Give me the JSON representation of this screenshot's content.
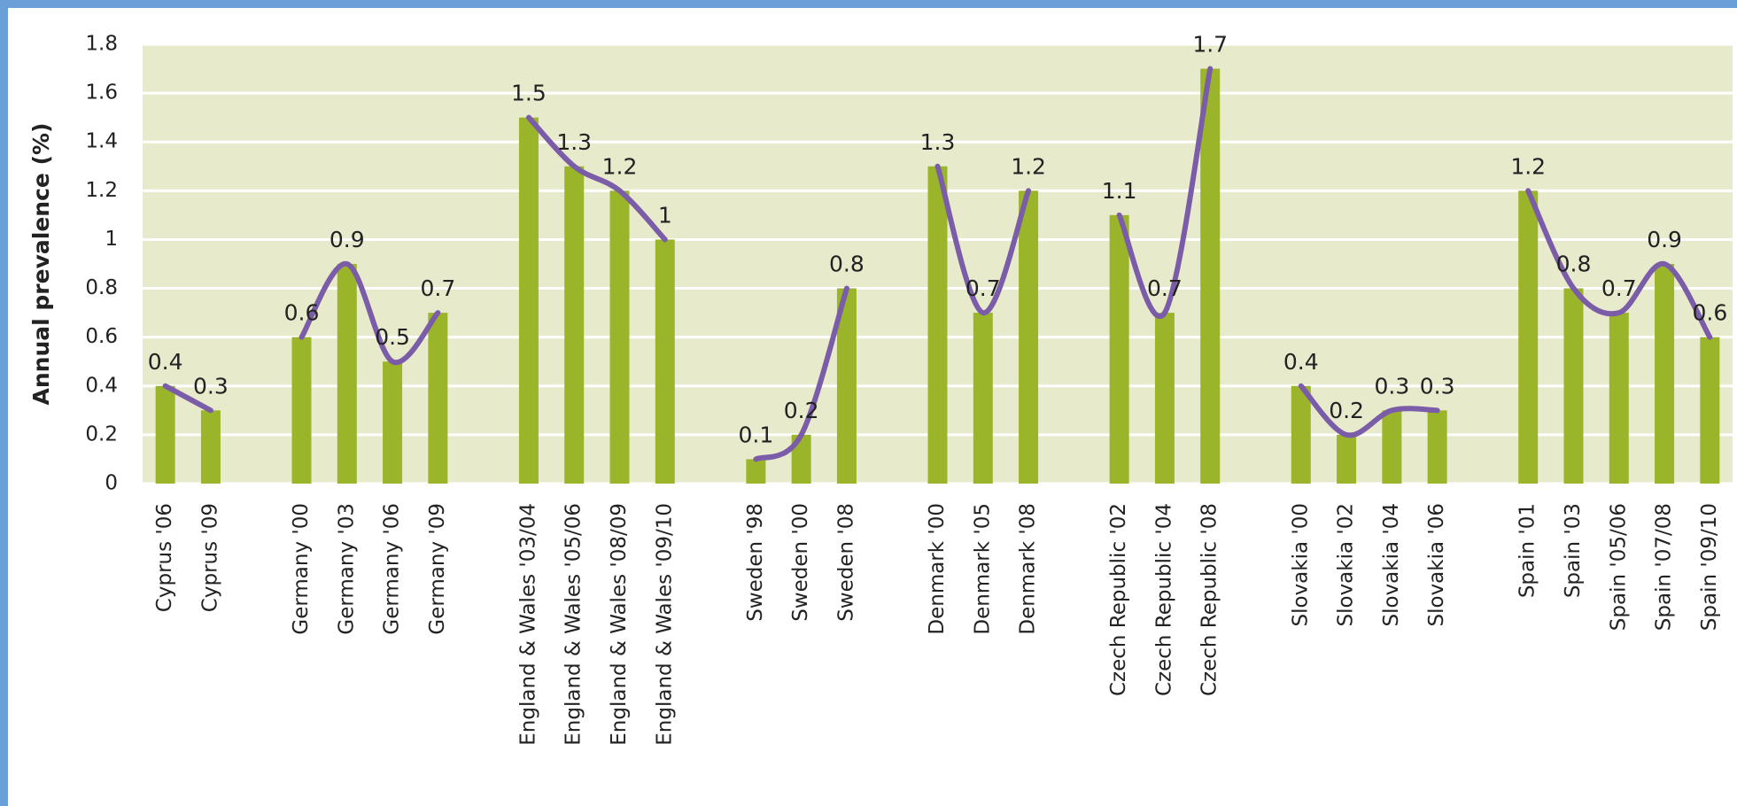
{
  "chart_data": {
    "type": "bar",
    "y_label": "Annual prevalence (%)",
    "categories": [
      "Cyprus '06",
      "Cyprus '09",
      null,
      "Germany '00",
      "Germany '03",
      "Germany '06",
      "Germany '09",
      null,
      "England & Wales '03/04",
      "England & Wales '05/06",
      "England & Wales '08/09",
      "England & Wales '09/10",
      null,
      "Sweden '98",
      "Sweden '00",
      "Sweden '08",
      null,
      "Denmark '00",
      "Denmark '05",
      "Denmark '08",
      null,
      "Czech Republic '02",
      "Czech Republic '04",
      "Czech Republic '08",
      null,
      "Slovakia '00",
      "Slovakia '02",
      "Slovakia '04",
      "Slovakia '06",
      null,
      "Spain '01",
      "Spain '03",
      "Spain '05/06",
      "Spain '07/08",
      "Spain '09/10"
    ],
    "values": [
      0.4,
      0.3,
      null,
      0.6,
      0.9,
      0.5,
      0.7,
      null,
      1.5,
      1.3,
      1.2,
      1,
      null,
      0.1,
      0.2,
      0.8,
      null,
      1.3,
      0.7,
      1.2,
      null,
      1.1,
      0.7,
      1.7,
      null,
      0.4,
      0.2,
      0.3,
      0.3,
      null,
      1.2,
      0.8,
      0.7,
      0.9,
      0.6
    ],
    "color": "#9bb52b",
    "line_color": "#7a5ca8",
    "plot_background": "#e8ebcb",
    "ylim": [
      0,
      1.8
    ],
    "yticks": [
      0,
      0.2,
      0.4,
      0.6,
      0.8,
      1,
      1.2,
      1.4,
      1.6,
      1.8
    ],
    "grid": true
  }
}
